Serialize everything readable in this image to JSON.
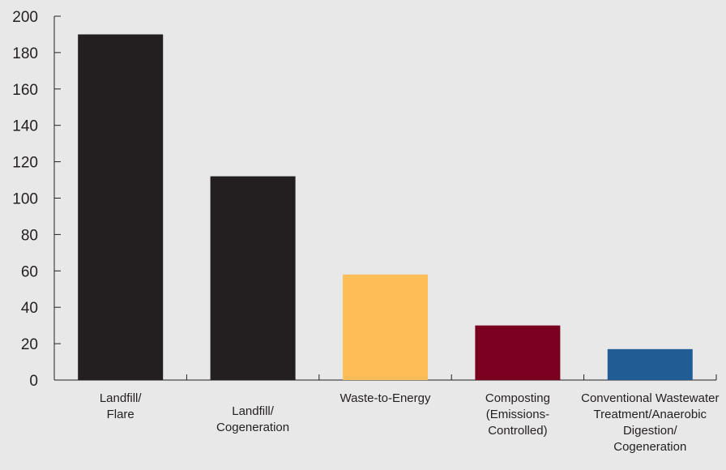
{
  "chart_data": {
    "type": "bar",
    "title": "",
    "xlabel": "",
    "ylabel": "",
    "ylim": [
      0,
      200
    ],
    "yticks": [
      0,
      20,
      40,
      60,
      80,
      100,
      120,
      140,
      160,
      180,
      200
    ],
    "grid": false,
    "categories": [
      [
        "Landfill/",
        "Flare"
      ],
      [
        "Landfill/",
        "Cogeneration"
      ],
      [
        "Waste-to-Energy"
      ],
      [
        "Composting",
        "(Emissions-",
        "Controlled)"
      ],
      [
        "Conventional Wastewater",
        "Treatment/Anaerobic",
        "Digestion/",
        "Cogeneration"
      ]
    ],
    "values": [
      190,
      112,
      58,
      30,
      17
    ],
    "colors": [
      "#231f20",
      "#231f20",
      "#fdbd57",
      "#7a0020",
      "#215c94"
    ]
  }
}
